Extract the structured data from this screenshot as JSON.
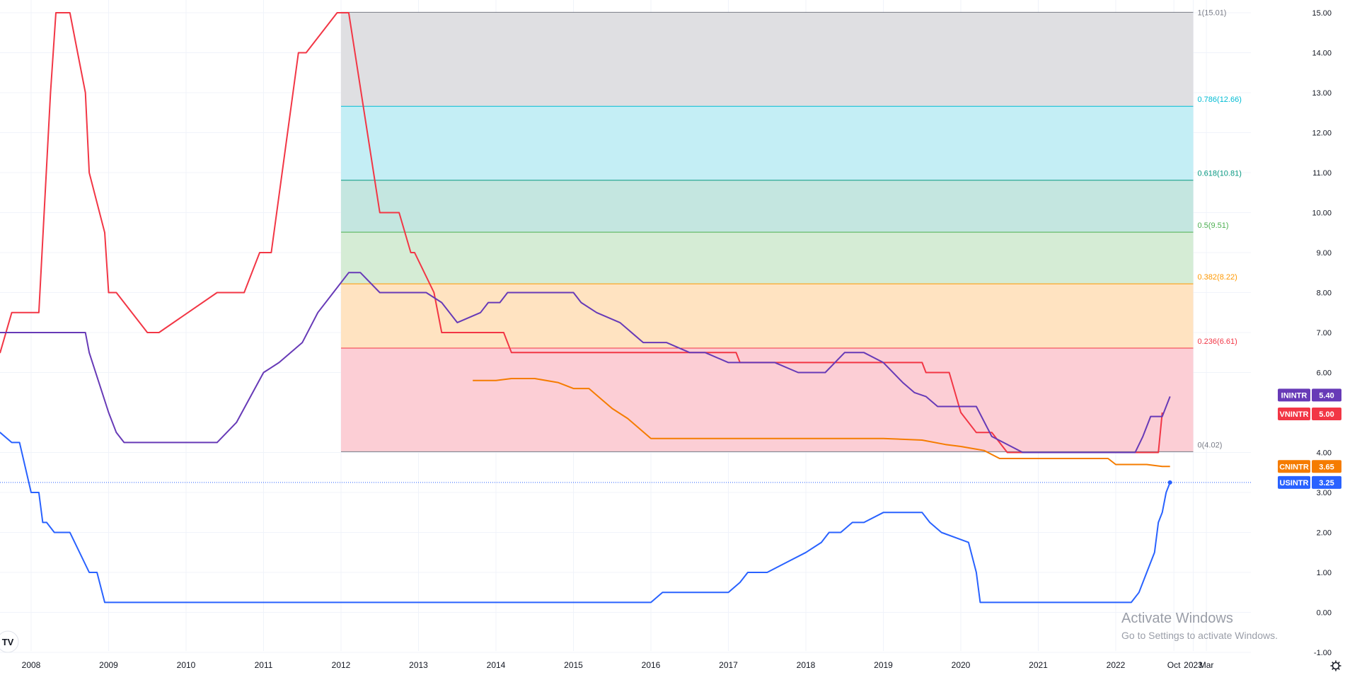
{
  "chart_data": {
    "type": "line",
    "ylim": [
      -1.3,
      15.3
    ],
    "y_ticks": [
      "15.00",
      "14.00",
      "13.00",
      "12.00",
      "11.00",
      "10.00",
      "9.00",
      "8.00",
      "7.00",
      "6.00",
      "4.00",
      "3.00",
      "2.00",
      "1.00",
      "0.00",
      "-1.00"
    ],
    "y_tick_values": [
      15,
      14,
      13,
      12,
      11,
      10,
      9,
      8,
      7,
      6,
      4,
      3,
      2,
      1,
      0,
      -1
    ],
    "x_range": [
      2007.3,
      2023.9
    ],
    "x_ticks": [
      {
        "label": "2008",
        "t": 2008.0
      },
      {
        "label": "2009",
        "t": 2009.0
      },
      {
        "label": "2010",
        "t": 2010.0
      },
      {
        "label": "2011",
        "t": 2011.0
      },
      {
        "label": "2012",
        "t": 2012.0
      },
      {
        "label": "2013",
        "t": 2013.0
      },
      {
        "label": "2014",
        "t": 2014.0
      },
      {
        "label": "2015",
        "t": 2015.0
      },
      {
        "label": "2016",
        "t": 2016.0
      },
      {
        "label": "2017",
        "t": 2017.0
      },
      {
        "label": "2018",
        "t": 2018.0
      },
      {
        "label": "2019",
        "t": 2019.0
      },
      {
        "label": "2020",
        "t": 2020.0
      },
      {
        "label": "2021",
        "t": 2021.0
      },
      {
        "label": "2022",
        "t": 2022.0
      },
      {
        "label": "Oct",
        "t": 2022.75
      },
      {
        "label": "2023",
        "t": 2023.0
      },
      {
        "label": "Mar",
        "t": 2023.17
      }
    ],
    "grid": true,
    "fibonacci": {
      "start": 2012.0,
      "end": 2023.0,
      "levels": [
        {
          "ratio": 1,
          "value": 15.01,
          "label": "1(15.01)",
          "color": "#787b86",
          "fill": "#dfdfe2"
        },
        {
          "ratio": 0.786,
          "value": 12.66,
          "label": "0.786(12.66)",
          "color": "#00bcd4",
          "fill": "#c4eef5"
        },
        {
          "ratio": 0.618,
          "value": 10.81,
          "label": "0.618(10.81)",
          "color": "#089981",
          "fill": "#c4e6e0"
        },
        {
          "ratio": 0.5,
          "value": 9.51,
          "label": "0.5(9.51)",
          "color": "#4caf50",
          "fill": "#d5ecd5"
        },
        {
          "ratio": 0.382,
          "value": 8.22,
          "label": "0.382(8.22)",
          "color": "#ff9800",
          "fill": "#ffe3c1"
        },
        {
          "ratio": 0.236,
          "value": 6.61,
          "label": "0.236(6.61)",
          "color": "#f23645",
          "fill": "#fcced5"
        },
        {
          "ratio": 0,
          "value": 4.02,
          "label": "0(4.02)",
          "color": "#787b86",
          "fill": "none"
        }
      ]
    },
    "series": [
      {
        "name": "VNINTR",
        "color": "#f23645",
        "last_label": "5.00",
        "last_value": 5.0,
        "x": [
          2007.3,
          2007.6,
          2007.75,
          2008.1,
          2008.25,
          2008.32,
          2008.5,
          2008.6,
          2008.7,
          2008.75,
          2008.95,
          2009.0,
          2009.1,
          2009.5,
          2009.65,
          2010.4,
          2010.45,
          2010.6,
          2010.75,
          2010.95,
          2011.1,
          2011.45,
          2011.55,
          2011.95,
          2012.1,
          2012.5,
          2012.75,
          2012.9,
          2012.95,
          2013.2,
          2013.3,
          2013.55,
          2014.1,
          2014.2,
          2017.1,
          2017.15,
          2018.5,
          2019.5,
          2019.55,
          2019.85,
          2020.0,
          2020.2,
          2020.4,
          2020.6,
          2020.75,
          2022.55,
          2022.6
        ],
        "y": [
          6.5,
          6.5,
          7.5,
          7.5,
          13,
          15,
          15,
          14,
          13,
          11,
          9.5,
          8,
          8,
          7,
          7,
          8,
          8,
          8,
          8,
          9,
          9,
          14,
          14,
          15,
          15,
          10,
          10,
          9,
          9,
          8,
          7,
          7,
          7,
          6.5,
          6.5,
          6.25,
          6.25,
          6.25,
          6.0,
          6.0,
          5.0,
          4.5,
          4.5,
          4.0,
          4.0,
          4.0,
          5.0
        ]
      },
      {
        "name": "ININTR",
        "color": "#673ab7",
        "last_label": "5.40",
        "last_value": 5.4,
        "x": [
          2007.3,
          2008.7,
          2008.75,
          2009.0,
          2009.1,
          2009.2,
          2009.3,
          2010.2,
          2010.4,
          2010.65,
          2011.0,
          2011.2,
          2011.5,
          2011.7,
          2011.9,
          2012.1,
          2012.25,
          2012.5,
          2012.75,
          2013.1,
          2013.3,
          2013.5,
          2013.8,
          2013.9,
          2014.05,
          2014.15,
          2014.25,
          2014.3,
          2015.0,
          2015.1,
          2015.3,
          2015.6,
          2015.9,
          2016.2,
          2016.5,
          2016.7,
          2017.0,
          2017.25,
          2017.6,
          2017.9,
          2018.25,
          2018.5,
          2018.75,
          2019.0,
          2019.25,
          2019.4,
          2019.55,
          2019.7,
          2020.2,
          2020.4,
          2020.8,
          2022.25,
          2022.35,
          2022.45,
          2022.6,
          2022.7
        ],
        "y": [
          7.0,
          7.0,
          6.5,
          5.0,
          4.5,
          4.25,
          4.25,
          4.25,
          4.25,
          4.75,
          6.0,
          6.25,
          6.75,
          7.5,
          8.0,
          8.5,
          8.5,
          8.0,
          8.0,
          8.0,
          7.75,
          7.25,
          7.5,
          7.75,
          7.75,
          8.0,
          8.0,
          8.0,
          8.0,
          7.75,
          7.5,
          7.25,
          6.75,
          6.75,
          6.5,
          6.5,
          6.25,
          6.25,
          6.25,
          6.0,
          6.0,
          6.5,
          6.5,
          6.25,
          5.75,
          5.5,
          5.4,
          5.15,
          5.15,
          4.4,
          4.0,
          4.0,
          4.4,
          4.9,
          4.9,
          5.4
        ]
      },
      {
        "name": "CNINTR",
        "color": "#f57c00",
        "last_label": "3.65",
        "last_value": 3.65,
        "x": [
          2013.7,
          2014.0,
          2014.2,
          2014.5,
          2014.8,
          2015.0,
          2015.2,
          2015.35,
          2015.5,
          2015.7,
          2015.85,
          2016.0,
          2017.0,
          2018.0,
          2018.2,
          2019.0,
          2019.5,
          2019.8,
          2020.0,
          2020.3,
          2020.5,
          2021.0,
          2021.5,
          2021.9,
          2022.0,
          2022.4,
          2022.6,
          2022.7
        ],
        "y": [
          5.8,
          5.8,
          5.85,
          5.85,
          5.75,
          5.6,
          5.6,
          5.35,
          5.1,
          4.85,
          4.6,
          4.35,
          4.35,
          4.35,
          4.35,
          4.35,
          4.31,
          4.2,
          4.15,
          4.05,
          3.85,
          3.85,
          3.85,
          3.85,
          3.7,
          3.7,
          3.65,
          3.65
        ]
      },
      {
        "name": "USINTR",
        "color": "#2962ff",
        "last_label": "3.25",
        "last_value": 3.25,
        "x": [
          2007.3,
          2007.45,
          2007.6,
          2007.75,
          2007.85,
          2008.0,
          2008.1,
          2008.15,
          2008.2,
          2008.3,
          2008.5,
          2008.75,
          2008.85,
          2008.95,
          2009.0,
          2016.0,
          2016.15,
          2017.0,
          2017.15,
          2017.25,
          2017.5,
          2017.75,
          2018.0,
          2018.2,
          2018.3,
          2018.45,
          2018.6,
          2018.75,
          2019.0,
          2019.5,
          2019.6,
          2019.75,
          2020.1,
          2020.2,
          2020.25,
          2022.2,
          2022.3,
          2022.4,
          2022.5,
          2022.55,
          2022.6,
          2022.65,
          2022.7
        ],
        "y": [
          4.75,
          4.5,
          4.5,
          4.25,
          4.25,
          3.0,
          3.0,
          2.25,
          2.25,
          2.0,
          2.0,
          1.0,
          1.0,
          0.25,
          0.25,
          0.25,
          0.5,
          0.5,
          0.75,
          1.0,
          1.0,
          1.25,
          1.5,
          1.75,
          2.0,
          2.0,
          2.25,
          2.25,
          2.5,
          2.5,
          2.25,
          2.0,
          1.75,
          1.0,
          0.25,
          0.25,
          0.5,
          1.0,
          1.5,
          2.25,
          2.5,
          3.0,
          3.25
        ]
      }
    ]
  },
  "watermark": {
    "title": "Activate Windows",
    "subtitle": "Go to Settings to activate Windows."
  },
  "logo_text": "TV"
}
